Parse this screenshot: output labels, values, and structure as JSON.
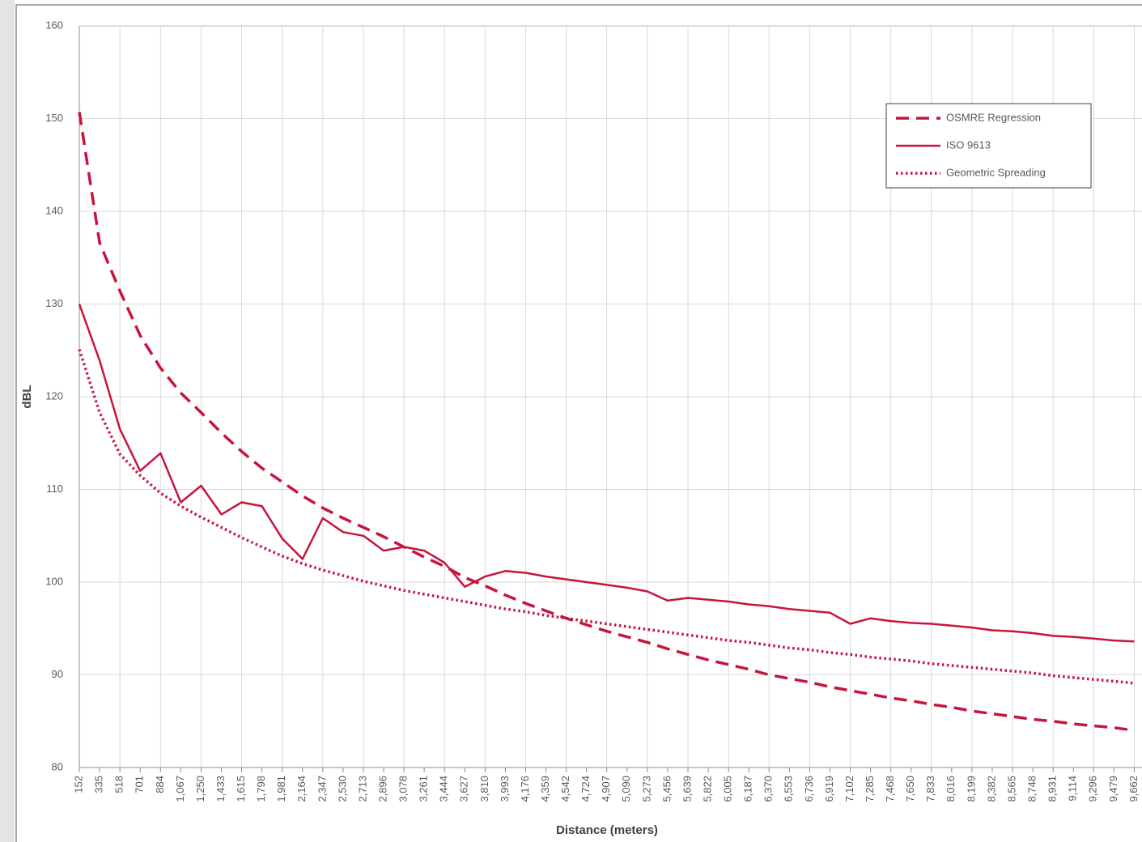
{
  "chart_data": {
    "type": "line",
    "x_label": "Distance (meters)",
    "y_label": "dBL",
    "x": [
      152,
      335,
      518,
      701,
      884,
      1067,
      1250,
      1433,
      1615,
      1798,
      1981,
      2164,
      2347,
      2530,
      2713,
      2896,
      3078,
      3261,
      3444,
      3627,
      3810,
      3993,
      4176,
      4359,
      4542,
      4724,
      4907,
      5090,
      5273,
      5456,
      5639,
      5822,
      6005,
      6187,
      6370,
      6553,
      6736,
      6919,
      7102,
      7285,
      7468,
      7650,
      7833,
      8016,
      8199,
      8382,
      8565,
      8748,
      8931,
      9114,
      9296,
      9479,
      9662
    ],
    "series": [
      {
        "name": "OSMRE Regression",
        "color": "#c8143c",
        "style": "dashed",
        "values": [
          150.7,
          136.6,
          131.4,
          126.6,
          123.1,
          120.4,
          118.3,
          116.1,
          114.1,
          112.3,
          110.8,
          109.3,
          108.0,
          106.9,
          105.9,
          104.9,
          103.8,
          102.7,
          101.7,
          100.5,
          99.6,
          98.6,
          97.7,
          96.9,
          96.1,
          95.4,
          94.7,
          94.1,
          93.5,
          92.8,
          92.2,
          91.6,
          91.1,
          90.6,
          90.0,
          89.6,
          89.2,
          88.7,
          88.3,
          87.9,
          87.5,
          87.2,
          86.8,
          86.5,
          86.1,
          85.8,
          85.5,
          85.2,
          85.0,
          84.7,
          84.5,
          84.3,
          84.0
        ]
      },
      {
        "name": "ISO 9613",
        "color": "#c8143c",
        "style": "solid",
        "values": [
          130.0,
          123.9,
          116.5,
          112.0,
          113.9,
          108.6,
          110.4,
          107.3,
          108.6,
          108.2,
          104.7,
          102.5,
          106.9,
          105.4,
          105.0,
          103.4,
          103.8,
          103.4,
          102.1,
          99.5,
          100.6,
          101.2,
          101.0,
          100.6,
          100.3,
          100.0,
          99.7,
          99.4,
          99.0,
          98.0,
          98.3,
          98.1,
          97.9,
          97.6,
          97.4,
          97.1,
          96.9,
          96.7,
          95.5,
          96.1,
          95.8,
          95.6,
          95.5,
          95.3,
          95.1,
          94.8,
          94.7,
          94.5,
          94.2,
          94.1,
          93.9,
          93.7,
          93.6
        ]
      },
      {
        "name": "Geometric Spreading",
        "color": "#c8143c",
        "style": "dotted",
        "values": [
          125.1,
          118.3,
          113.8,
          111.5,
          109.6,
          108.2,
          107.0,
          105.9,
          104.8,
          103.8,
          102.8,
          102.0,
          101.3,
          100.7,
          100.1,
          99.6,
          99.1,
          98.7,
          98.3,
          97.9,
          97.5,
          97.1,
          96.8,
          96.4,
          96.1,
          95.8,
          95.5,
          95.2,
          94.9,
          94.6,
          94.3,
          94.0,
          93.7,
          93.5,
          93.2,
          92.9,
          92.7,
          92.4,
          92.2,
          91.9,
          91.7,
          91.5,
          91.2,
          91.0,
          90.8,
          90.6,
          90.4,
          90.2,
          89.9,
          89.7,
          89.5,
          89.3,
          89.1
        ]
      }
    ],
    "xlim": [
      152,
      9732
    ],
    "xticks": [
      152,
      335,
      518,
      701,
      884,
      {
        "value": 1067,
        "label": "1,067"
      },
      {
        "value": 1250,
        "label": "1,250"
      },
      {
        "value": 1433,
        "label": "1,433"
      },
      {
        "value": 1615,
        "label": "1,615"
      },
      {
        "value": 1798,
        "label": "1,798"
      },
      {
        "value": 1981,
        "label": "1,981"
      },
      {
        "value": 2164,
        "label": "2,164"
      },
      {
        "value": 2347,
        "label": "2,347"
      },
      {
        "value": 2530,
        "label": "2,530"
      },
      {
        "value": 2713,
        "label": "2,713"
      },
      {
        "value": 2896,
        "label": "2,896"
      },
      {
        "value": 3078,
        "label": "3,078"
      },
      {
        "value": 3261,
        "label": "3,261"
      },
      {
        "value": 3444,
        "label": "3,444"
      },
      {
        "value": 3627,
        "label": "3,627"
      },
      {
        "value": 3810,
        "label": "3,810"
      },
      {
        "value": 3993,
        "label": "3,993"
      },
      {
        "value": 4176,
        "label": "4,176"
      },
      {
        "value": 4359,
        "label": "4,359"
      },
      {
        "value": 4542,
        "label": "4,542"
      },
      {
        "value": 4724,
        "label": "4,724"
      },
      {
        "value": 4907,
        "label": "4,907"
      },
      {
        "value": 5090,
        "label": "5,090"
      },
      {
        "value": 5273,
        "label": "5,273"
      },
      {
        "value": 5456,
        "label": "5,456"
      },
      {
        "value": 5639,
        "label": "5,639"
      },
      {
        "value": 5822,
        "label": "5,822"
      },
      {
        "value": 6005,
        "label": "6,005"
      },
      {
        "value": 6187,
        "label": "6,187"
      },
      {
        "value": 6370,
        "label": "6,370"
      },
      {
        "value": 6553,
        "label": "6,553"
      },
      {
        "value": 6736,
        "label": "6,736"
      },
      {
        "value": 6919,
        "label": "6,919"
      },
      {
        "value": 7102,
        "label": "7,102"
      },
      {
        "value": 7285,
        "label": "7,285"
      },
      {
        "value": 7468,
        "label": "7,468"
      },
      {
        "value": 7650,
        "label": "7,650"
      },
      {
        "value": 7833,
        "label": "7,833"
      },
      {
        "value": 8016,
        "label": "8,016"
      },
      {
        "value": 8199,
        "label": "8,199"
      },
      {
        "value": 8382,
        "label": "8,382"
      },
      {
        "value": 8565,
        "label": "8,565"
      },
      {
        "value": 8748,
        "label": "8,748"
      },
      {
        "value": 8931,
        "label": "8,931"
      },
      {
        "value": 9114,
        "label": "9,114"
      },
      {
        "value": 9296,
        "label": "9,296"
      },
      {
        "value": 9479,
        "label": "9,479"
      },
      {
        "value": 9662,
        "label": "9,662"
      }
    ],
    "ylim": [
      80,
      160
    ],
    "yticks": [
      80,
      90,
      100,
      110,
      120,
      130,
      140,
      150,
      160
    ],
    "grid": true,
    "legend": "upper right"
  }
}
